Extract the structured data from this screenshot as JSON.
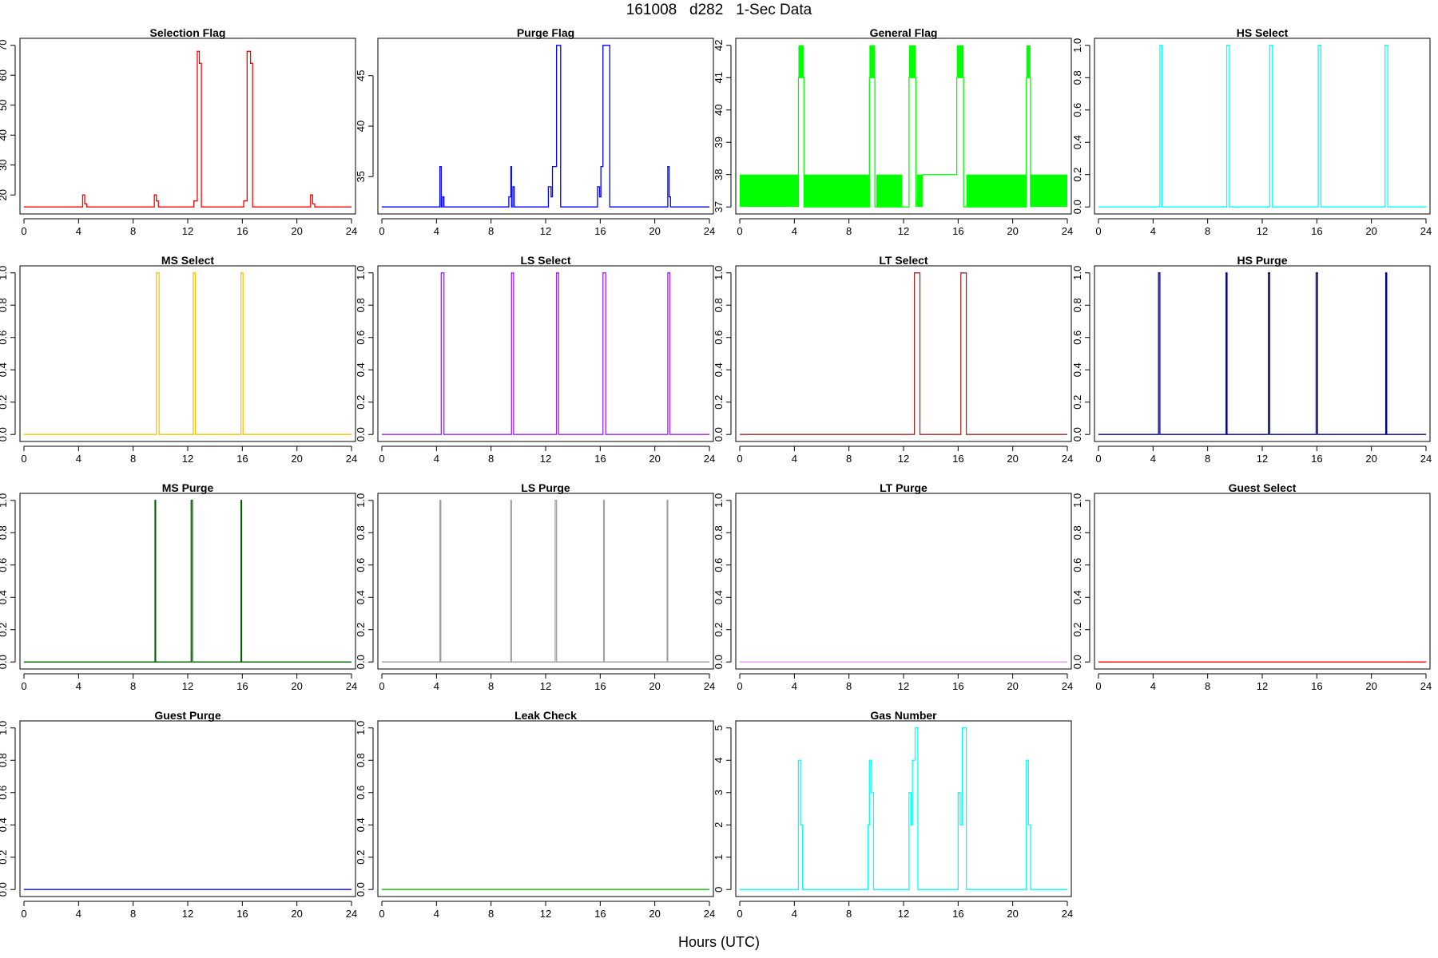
{
  "figure": {
    "title": "161008   d282   1-Sec Data",
    "xlabel": "Hours (UTC)"
  },
  "chart_data": [
    {
      "type": "line",
      "title": "Selection Flag",
      "color": "#ff0000",
      "xlim": [
        0,
        24
      ],
      "ylim": [
        16,
        70
      ],
      "xticks": [
        0,
        4,
        8,
        12,
        16,
        20,
        24
      ],
      "yticks": [
        20,
        30,
        40,
        50,
        60,
        70
      ],
      "x": [
        0,
        4.3,
        4.3,
        4.45,
        4.45,
        4.6,
        4.6,
        9.55,
        9.55,
        9.7,
        9.7,
        9.85,
        9.85,
        12.45,
        12.45,
        12.7,
        12.7,
        12.85,
        12.85,
        13.0,
        13.0,
        16.1,
        16.1,
        16.35,
        16.35,
        16.6,
        16.6,
        16.75,
        16.75,
        21.0,
        21.0,
        21.15,
        21.15,
        21.3,
        21.3,
        24
      ],
      "y": [
        16,
        16,
        20,
        20,
        17,
        17,
        16,
        16,
        20,
        20,
        18,
        18,
        16,
        16,
        18,
        18,
        68,
        68,
        64,
        64,
        16,
        16,
        18,
        18,
        68,
        68,
        64,
        64,
        16,
        16,
        20,
        20,
        17,
        17,
        16,
        16
      ]
    },
    {
      "type": "line",
      "title": "Purge Flag",
      "color": "#0000ff",
      "xlim": [
        0,
        24
      ],
      "ylim": [
        32,
        48
      ],
      "xticks": [
        0,
        4,
        8,
        12,
        16,
        20,
        24
      ],
      "yticks": [
        35,
        40,
        45
      ],
      "x": [
        0,
        4.25,
        4.25,
        4.35,
        4.35,
        4.45,
        4.45,
        4.55,
        4.55,
        9.3,
        9.3,
        9.45,
        9.45,
        9.5,
        9.5,
        9.6,
        9.6,
        9.7,
        9.7,
        12.2,
        12.2,
        12.4,
        12.4,
        12.5,
        12.5,
        12.8,
        12.8,
        13.1,
        13.1,
        15.8,
        15.8,
        15.95,
        15.95,
        16.05,
        16.05,
        16.2,
        16.2,
        16.7,
        16.7,
        20.95,
        20.95,
        21.05,
        21.05,
        21.15,
        21.15,
        24
      ],
      "y": [
        32,
        32,
        36,
        36,
        32,
        32,
        33,
        33,
        32,
        32,
        33,
        33,
        36,
        36,
        32,
        32,
        34,
        34,
        32,
        32,
        34,
        34,
        33,
        33,
        36,
        36,
        48,
        48,
        32,
        32,
        34,
        34,
        33,
        33,
        36,
        36,
        48,
        48,
        32,
        32,
        36,
        36,
        33,
        33,
        32,
        32
      ]
    },
    {
      "type": "line",
      "title": "General Flag",
      "color": "#00ff00",
      "xlim": [
        0,
        24
      ],
      "ylim": [
        37,
        42
      ],
      "xticks": [
        0,
        4,
        8,
        12,
        16,
        20,
        24
      ],
      "yticks": [
        37,
        38,
        39,
        40,
        41,
        42
      ],
      "fills": [
        {
          "x0": 0,
          "x1": 4.3,
          "y0": 37,
          "y1": 38
        },
        {
          "x0": 4.3,
          "x1": 4.7,
          "y0": 41,
          "y1": 42
        },
        {
          "x0": 4.7,
          "x1": 9.5,
          "y0": 37,
          "y1": 38
        },
        {
          "x0": 9.5,
          "x1": 9.9,
          "y0": 41,
          "y1": 42
        },
        {
          "x0": 10.0,
          "x1": 11.9,
          "y0": 37,
          "y1": 38
        },
        {
          "x0": 12.4,
          "x1": 12.9,
          "y0": 41,
          "y1": 42
        },
        {
          "x0": 13.0,
          "x1": 13.4,
          "y0": 37,
          "y1": 38
        },
        {
          "x0": 15.9,
          "x1": 16.4,
          "y0": 41,
          "y1": 42
        },
        {
          "x0": 16.6,
          "x1": 21.0,
          "y0": 37,
          "y1": 38
        },
        {
          "x0": 21.0,
          "x1": 21.3,
          "y0": 41,
          "y1": 42
        },
        {
          "x0": 21.3,
          "x1": 24,
          "y0": 37,
          "y1": 38
        }
      ],
      "x": [
        4.3,
        4.3,
        4.7,
        4.7,
        9.5,
        9.5,
        9.9,
        9.9,
        12.4,
        12.4,
        12.9,
        12.9,
        13.4,
        13.4,
        15.9,
        15.9,
        16.4,
        16.4,
        21.0,
        21.0,
        21.3,
        21.3
      ],
      "y": [
        37,
        41,
        41,
        37,
        37,
        41,
        41,
        37,
        37,
        41,
        41,
        37,
        38,
        38,
        38,
        41,
        41,
        37,
        37,
        41,
        41,
        37
      ]
    },
    {
      "type": "line",
      "title": "HS Select",
      "color": "#00ffff",
      "xlim": [
        0,
        24
      ],
      "ylim": [
        0,
        1
      ],
      "xticks": [
        0,
        4,
        8,
        12,
        16,
        20,
        24
      ],
      "yticks": [
        0.0,
        0.2,
        0.4,
        0.6,
        0.8,
        1.0
      ],
      "x": [
        0,
        4.5,
        4.5,
        4.65,
        4.65,
        9.4,
        9.4,
        9.6,
        9.6,
        12.55,
        12.55,
        12.75,
        12.75,
        16.1,
        16.1,
        16.3,
        16.3,
        21.0,
        21.0,
        21.2,
        21.2,
        24
      ],
      "y": [
        0,
        0,
        1,
        1,
        0,
        0,
        1,
        1,
        0,
        0,
        1,
        1,
        0,
        0,
        1,
        1,
        0,
        0,
        1,
        1,
        0,
        0
      ]
    },
    {
      "type": "line",
      "title": "MS Select",
      "color": "#ffc000",
      "xlim": [
        0,
        24
      ],
      "ylim": [
        0,
        1
      ],
      "xticks": [
        0,
        4,
        8,
        12,
        16,
        20,
        24
      ],
      "yticks": [
        0.0,
        0.2,
        0.4,
        0.6,
        0.8,
        1.0
      ],
      "x": [
        0,
        9.7,
        9.7,
        9.9,
        9.9,
        12.4,
        12.4,
        12.55,
        12.55,
        15.9,
        15.9,
        16.05,
        16.05,
        24
      ],
      "y": [
        0,
        0,
        1,
        1,
        0,
        0,
        1,
        1,
        0,
        0,
        1,
        1,
        0,
        0
      ]
    },
    {
      "type": "line",
      "title": "LS Select",
      "color": "#a020f0",
      "xlim": [
        0,
        24
      ],
      "ylim": [
        0,
        1
      ],
      "xticks": [
        0,
        4,
        8,
        12,
        16,
        20,
        24
      ],
      "yticks": [
        0.0,
        0.2,
        0.4,
        0.6,
        0.8,
        1.0
      ],
      "x": [
        0,
        4.35,
        4.35,
        4.55,
        4.55,
        9.5,
        9.5,
        9.65,
        9.65,
        12.8,
        12.8,
        12.95,
        12.95,
        16.2,
        16.2,
        16.4,
        16.4,
        20.95,
        20.95,
        21.1,
        21.1,
        24
      ],
      "y": [
        0,
        0,
        1,
        1,
        0,
        0,
        1,
        1,
        0,
        0,
        1,
        1,
        0,
        0,
        1,
        1,
        0,
        0,
        1,
        1,
        0,
        0
      ]
    },
    {
      "type": "line",
      "title": "LT Select",
      "color": "#a52a2a",
      "xlim": [
        0,
        24
      ],
      "ylim": [
        0,
        1
      ],
      "xticks": [
        0,
        4,
        8,
        12,
        16,
        20,
        24
      ],
      "yticks": [
        0.0,
        0.2,
        0.4,
        0.6,
        0.8,
        1.0
      ],
      "x": [
        0,
        12.8,
        12.8,
        13.2,
        13.2,
        16.2,
        16.2,
        16.6,
        16.6,
        24
      ],
      "y": [
        0,
        0,
        1,
        1,
        0,
        0,
        1,
        1,
        0,
        0
      ]
    },
    {
      "type": "line",
      "title": "HS Purge",
      "color": "#00008b",
      "xlim": [
        0,
        24
      ],
      "ylim": [
        0,
        1
      ],
      "xticks": [
        0,
        4,
        8,
        12,
        16,
        20,
        24
      ],
      "yticks": [
        0.0,
        0.2,
        0.4,
        0.6,
        0.8,
        1.0
      ],
      "x": [
        0,
        4.4,
        4.4,
        4.5,
        4.5,
        9.35,
        9.35,
        9.42,
        9.42,
        12.45,
        12.45,
        12.55,
        12.55,
        15.95,
        15.95,
        16.05,
        16.05,
        21.05,
        21.05,
        21.12,
        21.12,
        24
      ],
      "y": [
        0,
        0,
        1,
        1,
        0,
        0,
        1,
        1,
        0,
        0,
        1,
        1,
        0,
        0,
        1,
        1,
        0,
        0,
        1,
        1,
        0,
        0
      ]
    },
    {
      "type": "line",
      "title": "MS Purge",
      "color": "#006400",
      "xlim": [
        0,
        24
      ],
      "ylim": [
        0,
        1
      ],
      "xticks": [
        0,
        4,
        8,
        12,
        16,
        20,
        24
      ],
      "yticks": [
        0.0,
        0.2,
        0.4,
        0.6,
        0.8,
        1.0
      ],
      "x": [
        0,
        9.6,
        9.6,
        9.65,
        9.65,
        12.25,
        12.25,
        12.35,
        12.35,
        15.9,
        15.9,
        15.95,
        15.95,
        24
      ],
      "y": [
        0,
        0,
        1,
        1,
        0,
        0,
        1,
        1,
        0,
        0,
        1,
        1,
        0,
        0
      ]
    },
    {
      "type": "line",
      "title": "LS Purge",
      "color": "#a0a0a0",
      "xlim": [
        0,
        24
      ],
      "ylim": [
        0,
        1
      ],
      "xticks": [
        0,
        4,
        8,
        12,
        16,
        20,
        24
      ],
      "yticks": [
        0.0,
        0.2,
        0.4,
        0.6,
        0.8,
        1.0
      ],
      "x": [
        0,
        4.25,
        4.25,
        4.32,
        4.32,
        9.45,
        9.45,
        9.5,
        9.5,
        12.7,
        12.7,
        12.8,
        12.8,
        16.25,
        16.25,
        16.3,
        16.3,
        20.9,
        20.9,
        20.95,
        20.95,
        24
      ],
      "y": [
        0,
        0,
        1,
        1,
        0,
        0,
        1,
        1,
        0,
        0,
        1,
        1,
        0,
        0,
        1,
        1,
        0,
        0,
        1,
        1,
        0,
        0
      ]
    },
    {
      "type": "line",
      "title": "LT Purge",
      "color": "#dda0dd",
      "xlim": [
        0,
        24
      ],
      "ylim": [
        0,
        1
      ],
      "xticks": [
        0,
        4,
        8,
        12,
        16,
        20,
        24
      ],
      "yticks": [
        0.0,
        0.2,
        0.4,
        0.6,
        0.8,
        1.0
      ],
      "x": [
        0,
        24
      ],
      "y": [
        0,
        0
      ]
    },
    {
      "type": "line",
      "title": "Guest Select",
      "color": "#ff0000",
      "xlim": [
        0,
        24
      ],
      "ylim": [
        0,
        1
      ],
      "xticks": [
        0,
        4,
        8,
        12,
        16,
        20,
        24
      ],
      "yticks": [
        0.0,
        0.2,
        0.4,
        0.6,
        0.8,
        1.0
      ],
      "x": [
        0,
        24
      ],
      "y": [
        0,
        0
      ]
    },
    {
      "type": "line",
      "title": "Guest Purge",
      "color": "#0000ff",
      "xlim": [
        0,
        24
      ],
      "ylim": [
        0,
        1
      ],
      "xticks": [
        0,
        4,
        8,
        12,
        16,
        20,
        24
      ],
      "yticks": [
        0.0,
        0.2,
        0.4,
        0.6,
        0.8,
        1.0
      ],
      "x": [
        0,
        24
      ],
      "y": [
        0,
        0
      ]
    },
    {
      "type": "line",
      "title": "Leak Check",
      "color": "#00c000",
      "xlim": [
        0,
        24
      ],
      "ylim": [
        0,
        1
      ],
      "xticks": [
        0,
        4,
        8,
        12,
        16,
        20,
        24
      ],
      "yticks": [
        0.0,
        0.2,
        0.4,
        0.6,
        0.8,
        1.0
      ],
      "x": [
        0,
        24
      ],
      "y": [
        0,
        0
      ]
    },
    {
      "type": "line",
      "title": "Gas Number",
      "color": "#00ffff",
      "xlim": [
        0,
        24
      ],
      "ylim": [
        0,
        5
      ],
      "xticks": [
        0,
        4,
        8,
        12,
        16,
        20,
        24
      ],
      "yticks": [
        0,
        1,
        2,
        3,
        4,
        5
      ],
      "x": [
        0,
        4.3,
        4.3,
        4.45,
        4.45,
        4.6,
        4.6,
        9.4,
        9.4,
        9.5,
        9.5,
        9.65,
        9.65,
        9.8,
        9.8,
        12.4,
        12.4,
        12.55,
        12.55,
        12.65,
        12.65,
        12.85,
        12.85,
        13.05,
        13.05,
        16.0,
        16.0,
        16.15,
        16.15,
        16.3,
        16.3,
        16.6,
        16.6,
        21.0,
        21.0,
        21.15,
        21.15,
        21.3,
        21.3,
        24
      ],
      "y": [
        0,
        0,
        4,
        4,
        2,
        2,
        0,
        0,
        2,
        2,
        4,
        4,
        3,
        3,
        0,
        0,
        3,
        3,
        2,
        2,
        4,
        4,
        5,
        5,
        0,
        0,
        3,
        3,
        2,
        2,
        5,
        5,
        0,
        0,
        4,
        4,
        2,
        2,
        0,
        0
      ]
    }
  ]
}
